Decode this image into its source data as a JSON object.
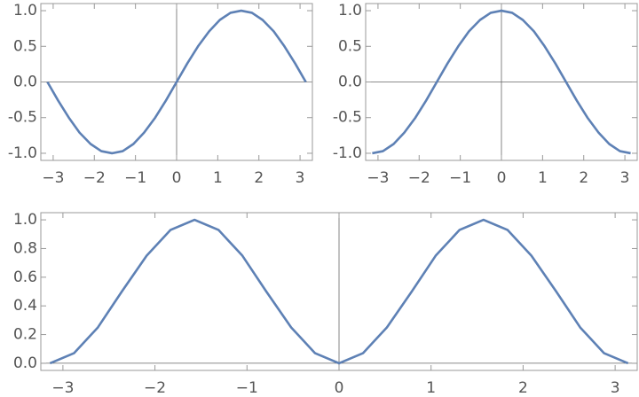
{
  "chart_data": [
    {
      "type": "line",
      "axes": true,
      "frame": true,
      "x": [
        -3.14,
        -2.88,
        -2.62,
        -2.36,
        -2.09,
        -1.83,
        -1.57,
        -1.31,
        -1.05,
        -0.79,
        -0.52,
        -0.26,
        0,
        0.26,
        0.52,
        0.79,
        1.05,
        1.31,
        1.57,
        1.83,
        2.09,
        2.36,
        2.62,
        2.88,
        3.14
      ],
      "series": [
        {
          "color": "#5e81b5",
          "values": [
            0,
            -0.26,
            -0.5,
            -0.71,
            -0.87,
            -0.97,
            -1,
            -0.97,
            -0.87,
            -0.71,
            -0.5,
            -0.26,
            0,
            0.26,
            0.5,
            0.71,
            0.87,
            0.97,
            1,
            0.97,
            0.87,
            0.71,
            0.5,
            0.26,
            0
          ]
        }
      ],
      "xlim": [
        -3.3,
        3.3
      ],
      "ylim": [
        -1.1,
        1.1
      ],
      "xticks": [
        {
          "value": -3,
          "label": "−3"
        },
        {
          "value": -2,
          "label": "−2"
        },
        {
          "value": -1,
          "label": "−1"
        },
        0,
        1,
        2,
        3
      ],
      "yticks": [
        {
          "value": -1,
          "label": "-1.0"
        },
        {
          "value": -0.5,
          "label": "-0.5"
        },
        {
          "value": 0,
          "label": "0.0"
        },
        0.5,
        {
          "value": 1,
          "label": "1.0"
        }
      ]
    },
    {
      "type": "line",
      "axes": true,
      "frame": true,
      "x": [
        -3.14,
        -2.88,
        -2.62,
        -2.36,
        -2.09,
        -1.83,
        -1.57,
        -1.31,
        -1.05,
        -0.79,
        -0.52,
        -0.26,
        0,
        0.26,
        0.52,
        0.79,
        1.05,
        1.31,
        1.57,
        1.83,
        2.09,
        2.36,
        2.62,
        2.88,
        3.14
      ],
      "series": [
        {
          "color": "#5e81b5",
          "values": [
            -1,
            -0.97,
            -0.87,
            -0.71,
            -0.5,
            -0.26,
            0,
            0.26,
            0.5,
            0.71,
            0.87,
            0.97,
            1,
            0.97,
            0.87,
            0.71,
            0.5,
            0.26,
            0,
            -0.26,
            -0.5,
            -0.71,
            -0.87,
            -0.97,
            -1
          ]
        }
      ],
      "xlim": [
        -3.3,
        3.3
      ],
      "ylim": [
        -1.1,
        1.1
      ],
      "xticks": [
        {
          "value": -3,
          "label": "−3"
        },
        {
          "value": -2,
          "label": "−2"
        },
        {
          "value": -1,
          "label": "−1"
        },
        0,
        1,
        2,
        3
      ],
      "yticks": [
        {
          "value": -1,
          "label": "-1.0"
        },
        {
          "value": -0.5,
          "label": "-0.5"
        },
        {
          "value": 0,
          "label": "0.0"
        },
        0.5,
        {
          "value": 1,
          "label": "1.0"
        }
      ]
    },
    {
      "type": "line",
      "axes": true,
      "frame": true,
      "x": [
        -3.14,
        -2.88,
        -2.62,
        -2.36,
        -2.09,
        -1.83,
        -1.57,
        -1.31,
        -1.05,
        -0.79,
        -0.52,
        -0.26,
        0,
        0.26,
        0.52,
        0.79,
        1.05,
        1.31,
        1.57,
        1.83,
        2.09,
        2.36,
        2.62,
        2.88,
        3.14
      ],
      "series": [
        {
          "color": "#5e81b5",
          "values": [
            0,
            0.07,
            0.25,
            0.5,
            0.75,
            0.93,
            1,
            0.93,
            0.75,
            0.5,
            0.25,
            0.07,
            0,
            0.07,
            0.25,
            0.5,
            0.75,
            0.93,
            1,
            0.93,
            0.75,
            0.5,
            0.25,
            0.07,
            0
          ]
        }
      ],
      "xlim": [
        -3.24,
        3.24
      ],
      "ylim": [
        -0.05,
        1.05
      ],
      "xticks": [
        {
          "value": -3,
          "label": "−3"
        },
        {
          "value": -2,
          "label": "−2"
        },
        {
          "value": -1,
          "label": "−1"
        },
        0,
        1,
        2,
        3
      ],
      "yticks": [
        {
          "value": 0,
          "label": "0.0"
        },
        0.2,
        0.4,
        0.6,
        0.8,
        {
          "value": 1,
          "label": "1.0"
        }
      ]
    }
  ]
}
